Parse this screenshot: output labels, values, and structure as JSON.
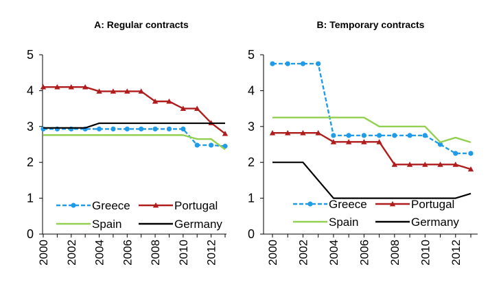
{
  "chart_data": [
    {
      "type": "line",
      "title": "A: Regular contracts",
      "x": [
        2000,
        2001,
        2002,
        2003,
        2004,
        2005,
        2006,
        2007,
        2008,
        2009,
        2010,
        2011,
        2012,
        2013
      ],
      "xticks": [
        "2000",
        "2002",
        "2004",
        "2006",
        "2008",
        "2010",
        "2012"
      ],
      "yticks": [
        "0",
        "1",
        "2",
        "3",
        "4",
        "5"
      ],
      "ylim": [
        0,
        5
      ],
      "xlabel": "",
      "ylabel": "",
      "grid": false,
      "legend_position": "bottom",
      "series": [
        {
          "name": "Greece",
          "color": "#1f9be8",
          "marker": "circle",
          "dash": true,
          "values": [
            2.93,
            2.93,
            2.93,
            2.93,
            2.93,
            2.93,
            2.93,
            2.93,
            2.93,
            2.93,
            2.93,
            2.48,
            2.48,
            2.45
          ]
        },
        {
          "name": "Portugal",
          "color": "#b01c1c",
          "marker": "triangle",
          "dash": false,
          "values": [
            4.1,
            4.1,
            4.1,
            4.1,
            3.98,
            3.98,
            3.98,
            3.98,
            3.7,
            3.7,
            3.5,
            3.5,
            3.1,
            2.8
          ]
        },
        {
          "name": "Spain",
          "color": "#92d050",
          "marker": "none",
          "dash": false,
          "values": [
            2.76,
            2.76,
            2.76,
            2.76,
            2.76,
            2.76,
            2.76,
            2.76,
            2.76,
            2.76,
            2.76,
            2.65,
            2.65,
            2.36
          ]
        },
        {
          "name": "Germany",
          "color": "#000000",
          "marker": "none",
          "dash": false,
          "values": [
            2.96,
            2.96,
            2.96,
            2.96,
            3.09,
            3.09,
            3.09,
            3.09,
            3.09,
            3.09,
            3.09,
            3.09,
            3.09,
            3.09
          ]
        }
      ]
    },
    {
      "type": "line",
      "title": "B: Temporary contracts",
      "x": [
        2000,
        2001,
        2002,
        2003,
        2004,
        2005,
        2006,
        2007,
        2008,
        2009,
        2010,
        2011,
        2012,
        2013
      ],
      "xticks": [
        "2000",
        "2002",
        "2004",
        "2006",
        "2008",
        "2010",
        "2012"
      ],
      "yticks": [
        "0",
        "1",
        "2",
        "3",
        "4",
        "5"
      ],
      "ylim": [
        0,
        5
      ],
      "xlabel": "",
      "ylabel": "",
      "grid": false,
      "legend_position": "bottom",
      "series": [
        {
          "name": "Greece",
          "color": "#1f9be8",
          "marker": "circle",
          "dash": true,
          "values": [
            4.75,
            4.75,
            4.75,
            4.75,
            2.75,
            2.75,
            2.75,
            2.75,
            2.75,
            2.75,
            2.75,
            2.5,
            2.25,
            2.25
          ]
        },
        {
          "name": "Portugal",
          "color": "#b01c1c",
          "marker": "triangle",
          "dash": false,
          "values": [
            2.82,
            2.82,
            2.82,
            2.82,
            2.57,
            2.57,
            2.57,
            2.57,
            1.94,
            1.94,
            1.94,
            1.94,
            1.94,
            1.81
          ]
        },
        {
          "name": "Spain",
          "color": "#92d050",
          "marker": "none",
          "dash": false,
          "values": [
            3.25,
            3.25,
            3.25,
            3.25,
            3.25,
            3.25,
            3.25,
            3.0,
            3.0,
            3.0,
            3.0,
            2.56,
            2.69,
            2.56
          ]
        },
        {
          "name": "Germany",
          "color": "#000000",
          "marker": "none",
          "dash": false,
          "values": [
            2.0,
            2.0,
            2.0,
            1.5,
            1.0,
            1.0,
            1.0,
            1.0,
            1.0,
            1.0,
            1.0,
            1.0,
            1.0,
            1.13
          ]
        }
      ]
    }
  ]
}
